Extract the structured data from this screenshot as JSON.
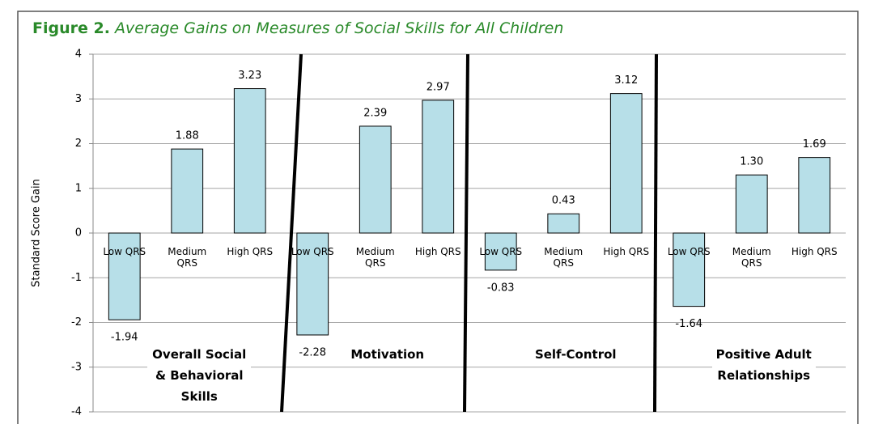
{
  "chart_data": {
    "type": "bar",
    "figure_label": "Figure 2.",
    "title": "Average Gains on Measures of Social Skills for All Children",
    "ylabel": "Standard Score Gain",
    "categories": [
      "Low QRS",
      "Medium QRS",
      "High QRS"
    ],
    "groups": [
      {
        "name": "Overall Social & Behavioral Skills",
        "values": [
          -1.94,
          1.88,
          3.23
        ],
        "value_labels": [
          "-1.94",
          "1.88",
          "3.23"
        ]
      },
      {
        "name": "Motivation",
        "values": [
          -2.28,
          2.39,
          2.97
        ],
        "value_labels": [
          "-2.28",
          "2.39",
          "2.97"
        ]
      },
      {
        "name": "Self-Control",
        "values": [
          -0.83,
          0.43,
          3.12
        ],
        "value_labels": [
          "-0.83",
          "0.43",
          "3.12"
        ]
      },
      {
        "name": "Positive Adult Relationships",
        "values": [
          -1.64,
          1.3,
          1.69
        ],
        "value_labels": [
          "-1.64",
          "1.30",
          "1.69"
        ]
      }
    ],
    "color": "#b7dfe8",
    "ylim": [
      -4,
      4
    ],
    "yticks": [
      -4,
      -3,
      -2,
      -1,
      0,
      1,
      2,
      3,
      4
    ],
    "grid": true
  }
}
